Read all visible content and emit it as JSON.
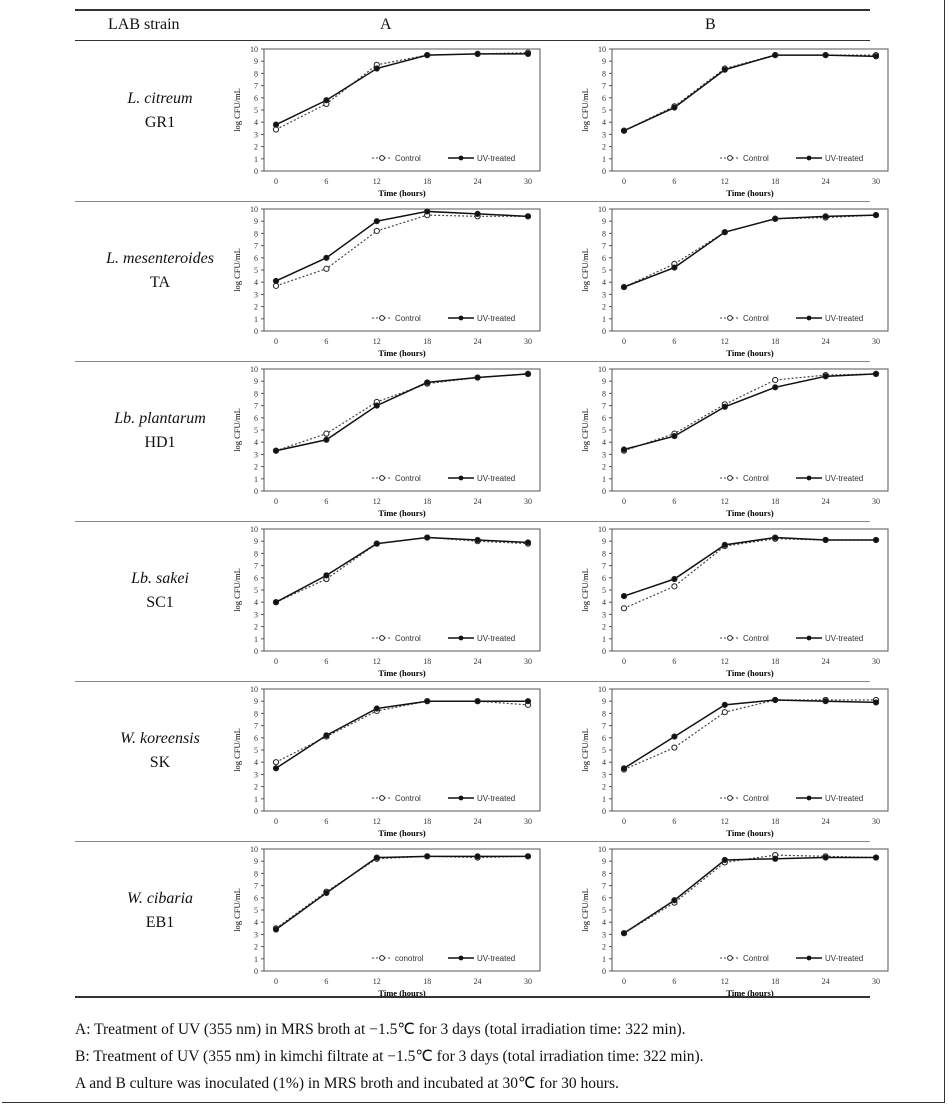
{
  "header": {
    "strain": "LAB strain",
    "colA": "A",
    "colB": "B"
  },
  "notes": [
    "A: Treatment of UV (355 nm) in MRS broth at −1.5℃ for 3 days (total irradiation time: 322 min).",
    "B: Treatment of UV (355 nm) in kimchi filtrate at −1.5℃ for 3 days (total irradiation time: 322 min).",
    "A and B culture was inoculated (1%) in MRS broth and incubated at 30℃ for 30 hours."
  ],
  "rows": [
    {
      "species": "L. citreum",
      "strain": "GR1"
    },
    {
      "species": "L. mesenteroides",
      "strain": "TA"
    },
    {
      "species": "Lb. plantarum",
      "strain": "HD1"
    },
    {
      "species": "Lb. sakei",
      "strain": "SC1"
    },
    {
      "species": "W. koreensis",
      "strain": "SK"
    },
    {
      "species": "W. cibaria",
      "strain": "EB1"
    }
  ],
  "chart_data": {
    "type": "line",
    "xlabel": "Time (hours)",
    "ylabel": "log CFU/mL",
    "x": [
      0,
      6,
      12,
      18,
      24,
      30
    ],
    "ylim": [
      0,
      10
    ],
    "yticks": [
      0,
      1,
      2,
      3,
      4,
      5,
      6,
      7,
      8,
      9,
      10
    ],
    "charts": [
      {
        "row": 0,
        "col": "A",
        "legend": [
          "Control",
          "UV-treated"
        ],
        "series": [
          {
            "name": "Control",
            "values": [
              3.4,
              5.5,
              8.7,
              9.5,
              9.6,
              9.7
            ]
          },
          {
            "name": "UV-treated",
            "values": [
              3.8,
              5.8,
              8.4,
              9.5,
              9.6,
              9.6
            ]
          }
        ]
      },
      {
        "row": 0,
        "col": "B",
        "legend": [
          "Control",
          "UV-treated"
        ],
        "series": [
          {
            "name": "Control",
            "values": [
              3.3,
              5.3,
              8.4,
              9.5,
              9.5,
              9.5
            ]
          },
          {
            "name": "UV-treated",
            "values": [
              3.3,
              5.2,
              8.3,
              9.5,
              9.5,
              9.4
            ]
          }
        ]
      },
      {
        "row": 1,
        "col": "A",
        "legend": [
          "Control",
          "UV-treated"
        ],
        "series": [
          {
            "name": "Control",
            "values": [
              3.7,
              5.1,
              8.2,
              9.5,
              9.4,
              9.4
            ]
          },
          {
            "name": "UV-treated",
            "values": [
              4.1,
              6.0,
              9.0,
              9.8,
              9.6,
              9.4
            ]
          }
        ]
      },
      {
        "row": 1,
        "col": "B",
        "legend": [
          "Control",
          "UV-treated"
        ],
        "series": [
          {
            "name": "Control",
            "values": [
              3.6,
              5.5,
              8.1,
              9.2,
              9.3,
              9.5
            ]
          },
          {
            "name": "UV-treated",
            "values": [
              3.6,
              5.2,
              8.1,
              9.2,
              9.4,
              9.5
            ]
          }
        ]
      },
      {
        "row": 2,
        "col": "A",
        "legend": [
          "Control",
          "UV-treated"
        ],
        "series": [
          {
            "name": "Control",
            "values": [
              3.3,
              4.7,
              7.3,
              8.8,
              9.3,
              9.6
            ]
          },
          {
            "name": "UV-treated",
            "values": [
              3.3,
              4.2,
              7.0,
              8.9,
              9.3,
              9.6
            ]
          }
        ]
      },
      {
        "row": 2,
        "col": "B",
        "legend": [
          "Control",
          "UV-treated"
        ],
        "series": [
          {
            "name": "Control",
            "values": [
              3.3,
              4.7,
              7.1,
              9.1,
              9.5,
              9.6
            ]
          },
          {
            "name": "UV-treated",
            "values": [
              3.4,
              4.5,
              6.9,
              8.5,
              9.4,
              9.6
            ]
          }
        ]
      },
      {
        "row": 3,
        "col": "A",
        "legend": [
          "Control",
          "UV-treated"
        ],
        "series": [
          {
            "name": "Control",
            "values": [
              4.0,
              5.9,
              8.8,
              9.3,
              9.0,
              8.8
            ]
          },
          {
            "name": "UV-treated",
            "values": [
              4.0,
              6.2,
              8.8,
              9.3,
              9.1,
              8.9
            ]
          }
        ]
      },
      {
        "row": 3,
        "col": "B",
        "legend": [
          "Control",
          "UV-treated"
        ],
        "series": [
          {
            "name": "Control",
            "values": [
              3.5,
              5.3,
              8.6,
              9.2,
              9.1,
              9.1
            ]
          },
          {
            "name": "UV-treated",
            "values": [
              4.5,
              5.9,
              8.7,
              9.3,
              9.1,
              9.1
            ]
          }
        ]
      },
      {
        "row": 4,
        "col": "A",
        "legend": [
          "Control",
          "UV-treated"
        ],
        "series": [
          {
            "name": "Control",
            "values": [
              4.0,
              6.1,
              8.2,
              9.0,
              9.0,
              8.7
            ]
          },
          {
            "name": "UV-treated",
            "values": [
              3.5,
              6.2,
              8.4,
              9.0,
              9.0,
              9.0
            ]
          }
        ]
      },
      {
        "row": 4,
        "col": "B",
        "legend": [
          "Control",
          "UV-treated"
        ],
        "series": [
          {
            "name": "Control",
            "values": [
              3.4,
              5.2,
              8.1,
              9.1,
              9.1,
              9.1
            ]
          },
          {
            "name": "UV-treated",
            "values": [
              3.5,
              6.1,
              8.7,
              9.1,
              9.0,
              8.9
            ]
          }
        ]
      },
      {
        "row": 5,
        "col": "A",
        "legend": [
          "conotrol",
          "UV-treated"
        ],
        "series": [
          {
            "name": "conotrol",
            "values": [
              3.5,
              6.5,
              9.2,
              9.4,
              9.3,
              9.4
            ]
          },
          {
            "name": "UV-treated",
            "values": [
              3.4,
              6.4,
              9.3,
              9.4,
              9.4,
              9.4
            ]
          }
        ]
      },
      {
        "row": 5,
        "col": "B",
        "legend": [
          "Control",
          "UV-treated"
        ],
        "series": [
          {
            "name": "Control",
            "values": [
              3.1,
              5.6,
              8.9,
              9.5,
              9.4,
              9.3
            ]
          },
          {
            "name": "UV-treated",
            "values": [
              3.1,
              5.8,
              9.1,
              9.2,
              9.3,
              9.3
            ]
          }
        ]
      }
    ]
  }
}
